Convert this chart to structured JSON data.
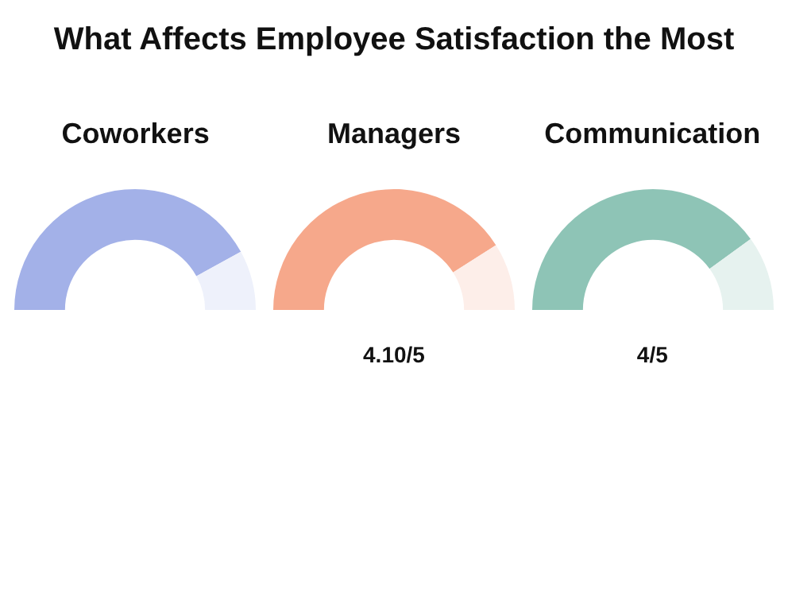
{
  "chart_data": [
    {
      "type": "other",
      "title": "What Affects Employee Satisfaction the Most"
    },
    {
      "type": "donut",
      "title": "Coworkers",
      "categories": [
        null,
        null
      ],
      "values": [
        84,
        16
      ],
      "colors": [
        "#a3b1e8",
        "#eef1fb"
      ]
    },
    {
      "type": "donut",
      "title": "Managers",
      "categories": [
        null,
        null
      ],
      "values": [
        82,
        18
      ],
      "colors": [
        "#f6a88b",
        "#fdeee9"
      ],
      "annotations": [
        "4.10/5"
      ]
    },
    {
      "type": "donut",
      "title": "Communication",
      "categories": [
        null,
        null
      ],
      "values": [
        80,
        20
      ],
      "colors": [
        "#8ec4b6",
        "#e6f2ef"
      ],
      "annotations": [
        "4/5"
      ]
    }
  ]
}
